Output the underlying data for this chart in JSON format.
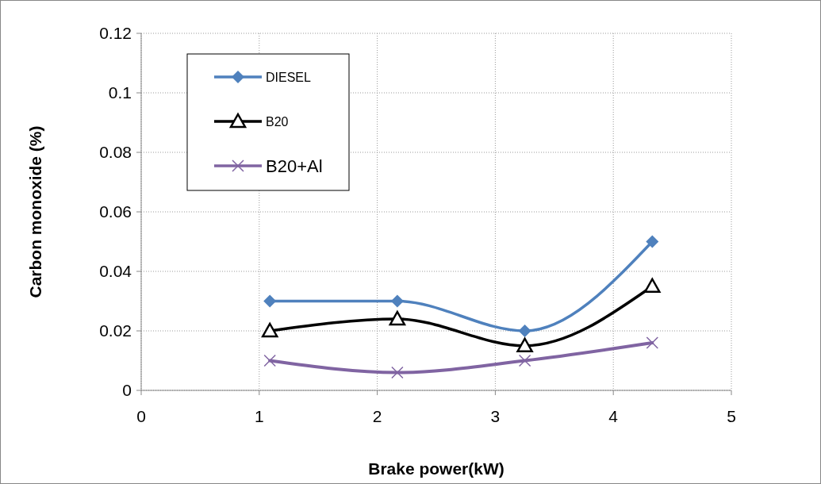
{
  "chart_data": {
    "type": "line",
    "xlabel": "Brake power(kW)",
    "ylabel": "Carbon monoxide (%)",
    "x": [
      1.09,
      2.17,
      3.25,
      4.33
    ],
    "series": [
      {
        "name": "DIESEL",
        "color": "#4f81bd",
        "marker": "diamond",
        "values": [
          0.03,
          0.03,
          0.02,
          0.05
        ]
      },
      {
        "name": "B20",
        "color": "#000000",
        "marker": "triangle",
        "values": [
          0.02,
          0.024,
          0.015,
          0.035
        ]
      },
      {
        "name": "B20+Al",
        "color": "#8064a2",
        "marker": "cross",
        "values": [
          0.01,
          0.006,
          0.01,
          0.016
        ]
      }
    ],
    "xlim": [
      0,
      5
    ],
    "xticks": [
      0,
      1,
      2,
      3,
      4,
      5
    ],
    "ylim": [
      0,
      0.12
    ],
    "yticks": [
      0,
      0.02,
      0.04,
      0.06,
      0.08,
      0.1,
      0.12
    ],
    "grid": true,
    "legend": "top left",
    "line_style": "solid"
  }
}
